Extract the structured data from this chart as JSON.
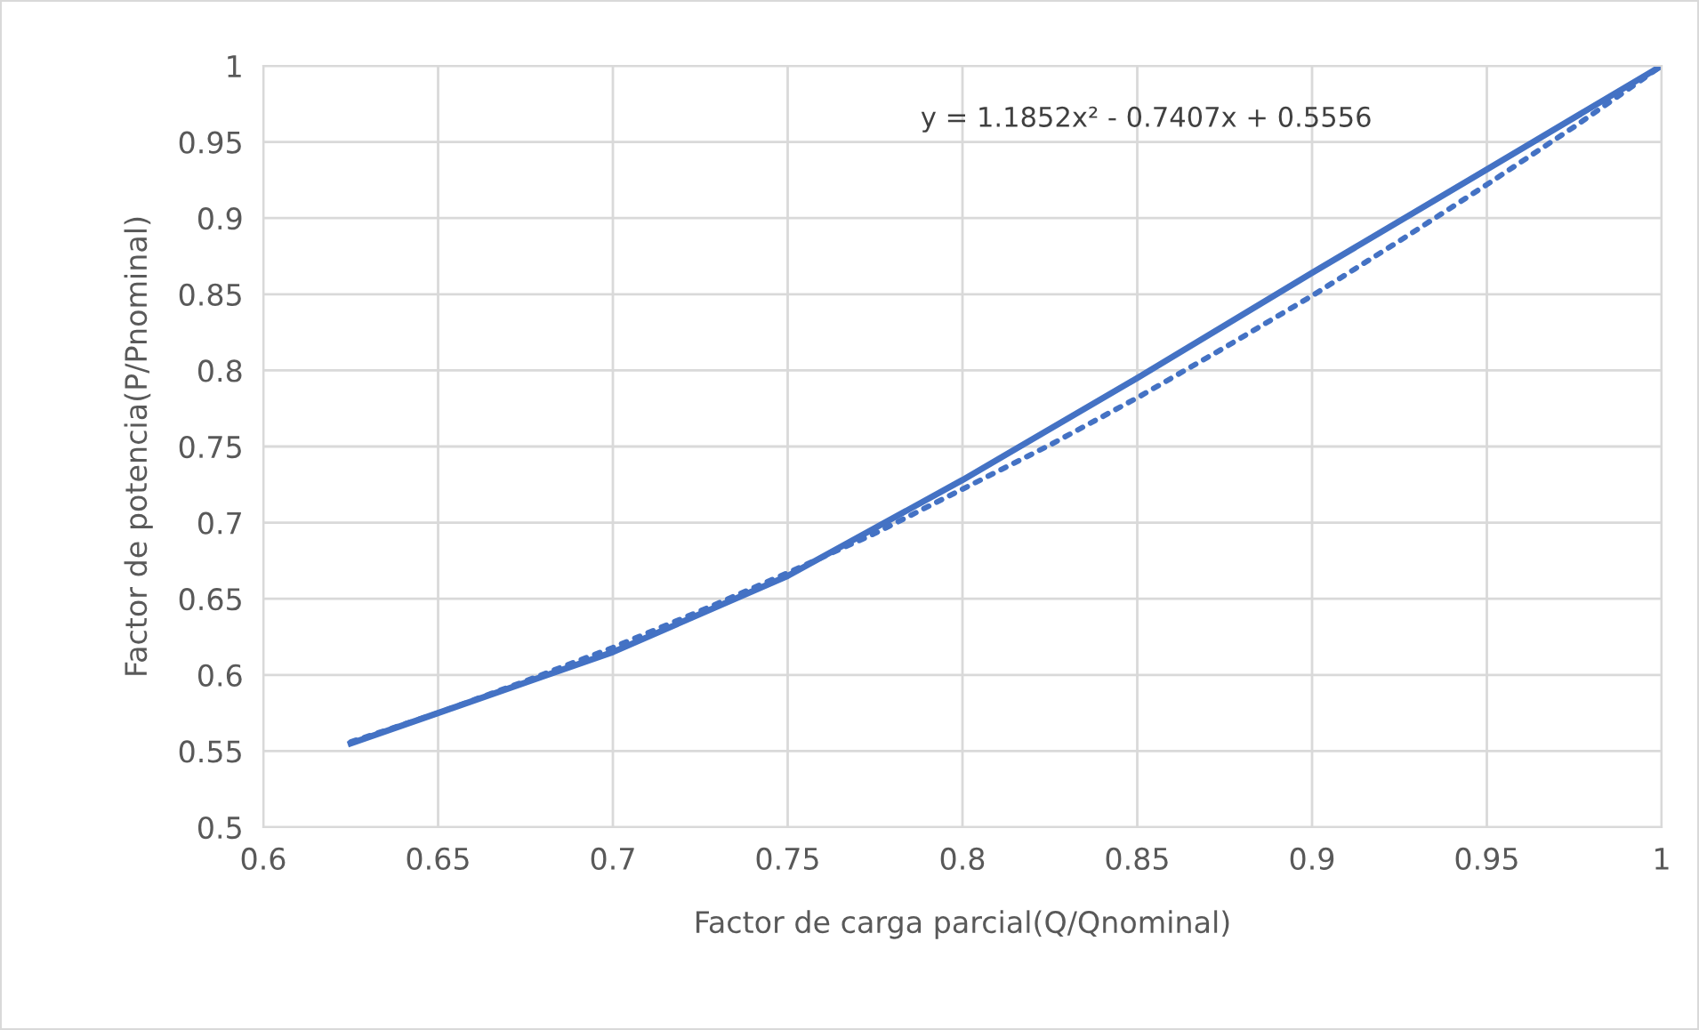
{
  "chart_data": {
    "type": "line",
    "xlabel": "Factor de carga parcial(Q/Qnominal)",
    "ylabel": "Factor de potencia(P/Pnominal)",
    "annotations": [
      "y = 1.1852x² - 0.7407x + 0.5556"
    ],
    "xlim": [
      0.6,
      1
    ],
    "xticks": [
      0.6,
      0.65,
      0.7,
      0.75,
      0.8,
      0.85,
      0.9,
      0.95,
      1
    ],
    "ylim": [
      0.5,
      1
    ],
    "yticks": [
      0.5,
      0.55,
      0.6,
      0.65,
      0.7,
      0.75,
      0.8,
      0.85,
      0.9,
      0.95,
      1
    ],
    "grid": true,
    "legend": false,
    "marker": "none",
    "series": [
      {
        "color": "#4472c4",
        "line_style": "solid",
        "x": [
          0.625,
          0.65,
          0.7,
          0.75,
          0.8,
          0.85,
          0.9,
          0.95,
          1
        ],
        "values": [
          0.555,
          0.575,
          0.615,
          0.665,
          0.728,
          0.795,
          0.864,
          0.932,
          1
        ]
      },
      {
        "color": "#4472c4",
        "line_style": "dotted",
        "x": [
          0.625,
          0.65,
          0.675,
          0.7,
          0.725,
          0.75,
          0.775,
          0.8,
          0.825,
          0.85,
          0.875,
          0.9,
          0.925,
          0.95,
          0.975,
          1
        ],
        "values": [
          0.556,
          0.575,
          0.596,
          0.618,
          0.642,
          0.667,
          0.693,
          0.722,
          0.751,
          0.782,
          0.815,
          0.849,
          0.885,
          0.922,
          0.96,
          1.0
        ]
      }
    ]
  }
}
